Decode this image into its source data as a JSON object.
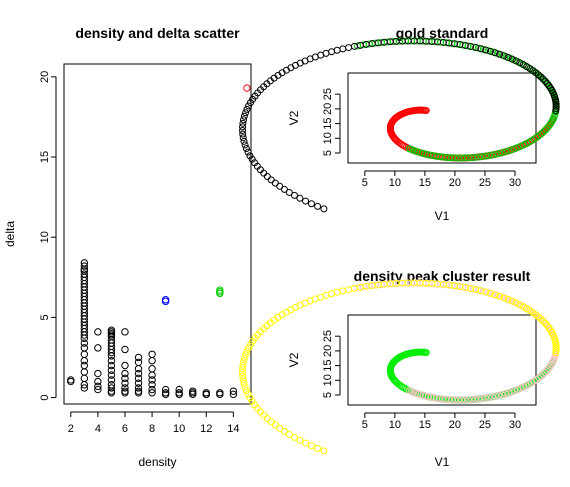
{
  "chart_data": [
    {
      "id": "scatter",
      "type": "scatter",
      "title": "density and delta scatter",
      "xlabel": "density",
      "ylabel": "delta",
      "xlim": [
        1.5,
        15.3
      ],
      "ylim": [
        -0.4,
        20.8
      ],
      "xticks": [
        2,
        4,
        6,
        8,
        10,
        12,
        14
      ],
      "yticks": [
        0,
        5,
        10,
        15,
        20
      ],
      "series": [
        {
          "color": "#000000",
          "points": [
            [
              2,
              1.1
            ],
            [
              2,
              1.0
            ],
            [
              3,
              8.4
            ],
            [
              3,
              8.2
            ],
            [
              3,
              8.0
            ],
            [
              3,
              7.9
            ],
            [
              3,
              7.7
            ],
            [
              3,
              7.5
            ],
            [
              3,
              7.3
            ],
            [
              3,
              7.1
            ],
            [
              3,
              6.9
            ],
            [
              3,
              6.7
            ],
            [
              3,
              6.5
            ],
            [
              3,
              6.3
            ],
            [
              3,
              6.1
            ],
            [
              3,
              5.9
            ],
            [
              3,
              5.7
            ],
            [
              3,
              5.5
            ],
            [
              3,
              5.3
            ],
            [
              3,
              5.1
            ],
            [
              3,
              4.9
            ],
            [
              3,
              4.7
            ],
            [
              3,
              4.5
            ],
            [
              3,
              4.3
            ],
            [
              3,
              4.1
            ],
            [
              3,
              3.9
            ],
            [
              3,
              3.7
            ],
            [
              3,
              3.4
            ],
            [
              3,
              3.1
            ],
            [
              3,
              2.7
            ],
            [
              3,
              2.3
            ],
            [
              3,
              2.0
            ],
            [
              3,
              1.6
            ],
            [
              3,
              1.2
            ],
            [
              3,
              0.8
            ],
            [
              3,
              0.6
            ],
            [
              4,
              4.1
            ],
            [
              4,
              3.1
            ],
            [
              4,
              1.5
            ],
            [
              4,
              1.0
            ],
            [
              4,
              0.7
            ],
            [
              4,
              0.5
            ],
            [
              5,
              4.2
            ],
            [
              5,
              4.1
            ],
            [
              5,
              4.0
            ],
            [
              5,
              3.9
            ],
            [
              5,
              3.8
            ],
            [
              5,
              3.6
            ],
            [
              5,
              3.4
            ],
            [
              5,
              3.2
            ],
            [
              5,
              3.0
            ],
            [
              5,
              2.8
            ],
            [
              5,
              2.6
            ],
            [
              5,
              2.3
            ],
            [
              5,
              2.0
            ],
            [
              5,
              1.7
            ],
            [
              5,
              1.4
            ],
            [
              5,
              1.1
            ],
            [
              5,
              0.8
            ],
            [
              5,
              0.6
            ],
            [
              5,
              0.4
            ],
            [
              5,
              0.3
            ],
            [
              6,
              4.1
            ],
            [
              6,
              3.0
            ],
            [
              6,
              2.0
            ],
            [
              6,
              1.5
            ],
            [
              6,
              1.2
            ],
            [
              6,
              0.9
            ],
            [
              6,
              0.6
            ],
            [
              6,
              0.4
            ],
            [
              6,
              0.3
            ],
            [
              7,
              2.5
            ],
            [
              7,
              2.2
            ],
            [
              7,
              1.8
            ],
            [
              7,
              1.5
            ],
            [
              7,
              1.2
            ],
            [
              7,
              0.9
            ],
            [
              7,
              0.6
            ],
            [
              7,
              0.4
            ],
            [
              7,
              0.3
            ],
            [
              8,
              2.7
            ],
            [
              8,
              2.3
            ],
            [
              8,
              1.8
            ],
            [
              8,
              1.4
            ],
            [
              8,
              1.1
            ],
            [
              8,
              0.8
            ],
            [
              8,
              0.5
            ],
            [
              8,
              0.3
            ],
            [
              9,
              0.5
            ],
            [
              9,
              0.3
            ],
            [
              9,
              0.2
            ],
            [
              10,
              0.5
            ],
            [
              10,
              0.3
            ],
            [
              10,
              0.2
            ],
            [
              11,
              0.4
            ],
            [
              11,
              0.3
            ],
            [
              11,
              0.2
            ],
            [
              12,
              0.3
            ],
            [
              12,
              0.2
            ],
            [
              12,
              0.2
            ],
            [
              13,
              0.3
            ],
            [
              13,
              0.2
            ],
            [
              14,
              0.4
            ],
            [
              14,
              0.2
            ]
          ]
        },
        {
          "color": "#0000ff",
          "points": [
            [
              9,
              6.0
            ],
            [
              9,
              6.1
            ]
          ]
        },
        {
          "color": "#00cc00",
          "points": [
            [
              13,
              6.5
            ],
            [
              13,
              6.6
            ],
            [
              13,
              6.7
            ]
          ]
        },
        {
          "color": "#ff0000",
          "points": [
            [
              15,
              19.3
            ]
          ]
        }
      ]
    },
    {
      "id": "gold",
      "type": "scatter",
      "title": "gold standard",
      "xlabel": "V1",
      "ylabel": "V2",
      "xlim": [
        2.2,
        33.5
      ],
      "ylim": [
        1.6,
        32.2
      ],
      "xticks": [
        5,
        10,
        15,
        20,
        25,
        30
      ],
      "yticks": [
        5,
        10,
        15,
        20,
        25
      ],
      "series": [
        {
          "color": "#ff0000",
          "spiral": {
            "cx": 17,
            "cy": 17,
            "a": 3.0,
            "b": 2.6,
            "t0": 2.2,
            "t1": 6.25,
            "n": 110
          }
        },
        {
          "color": "#00cc00",
          "spiral": {
            "cx": 17,
            "cy": 17,
            "a": 3.0,
            "b": 2.6,
            "t0": 4.3,
            "t1": 8.35,
            "n": 110
          }
        },
        {
          "color": "#000000",
          "spiral": {
            "cx": 17,
            "cy": 17,
            "a": 3.0,
            "b": 2.6,
            "t0": 6.4,
            "t1": 10.45,
            "n": 110
          }
        }
      ]
    },
    {
      "id": "result",
      "type": "scatter",
      "title": "density peak cluster result",
      "xlabel": "V1",
      "ylabel": "V2",
      "xlim": [
        2.2,
        33.5
      ],
      "ylim": [
        1.6,
        32.2
      ],
      "xticks": [
        5,
        10,
        15,
        20,
        25,
        30
      ],
      "yticks": [
        5,
        10,
        15,
        20,
        25
      ],
      "series": [
        {
          "color": "#00ee00",
          "spiral": {
            "cx": 17,
            "cy": 17,
            "a": 3.0,
            "b": 2.6,
            "t0": 2.2,
            "t1": 6.25,
            "n": 110
          }
        },
        {
          "color": "#ffc0cb",
          "spiral": {
            "cx": 17,
            "cy": 17,
            "a": 3.0,
            "b": 2.6,
            "t0": 4.3,
            "t1": 8.35,
            "n": 110
          }
        },
        {
          "color": "#ffff00",
          "spiral": {
            "cx": 17,
            "cy": 17,
            "a": 3.0,
            "b": 2.6,
            "t0": 6.4,
            "t1": 10.45,
            "n": 110
          }
        }
      ]
    }
  ]
}
